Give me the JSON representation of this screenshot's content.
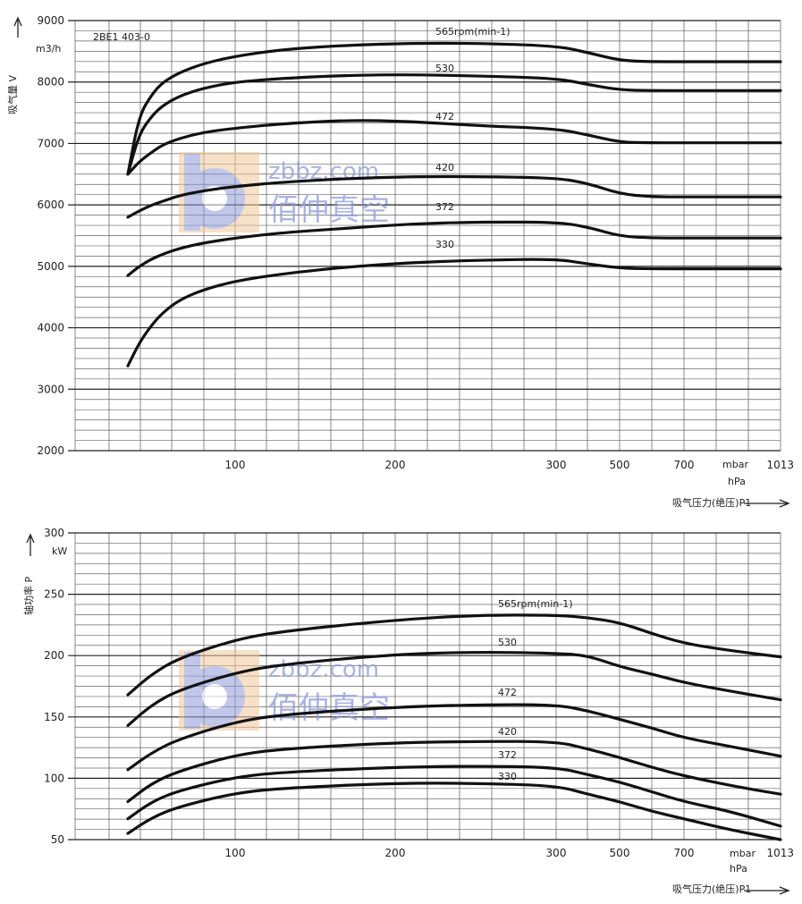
{
  "chart_data": [
    {
      "type": "line",
      "title": "2BE1 403-0",
      "ylabel": "吸气量 V",
      "yunit": "m3/h",
      "xlabel": "吸气压力(绝压)P1",
      "xunit_1": "mbar",
      "xunit_2": "hPa",
      "ylim": [
        2000,
        9000
      ],
      "y_ticks": [
        "2000",
        "3000",
        "4000",
        "5000",
        "6000",
        "7000",
        "8000",
        "9000"
      ],
      "x_ticks": [
        "100",
        "200",
        "300",
        "500",
        "700",
        "1013"
      ],
      "series": [
        {
          "name": "565rpm(min-1)",
          "x": [
            33,
            40,
            48,
            55,
            65,
            80,
            100,
            130,
            170,
            210,
            250,
            300,
            400,
            500,
            600,
            700,
            850,
            1013
          ],
          "y": [
            6500,
            7450,
            7800,
            8000,
            8150,
            8300,
            8420,
            8530,
            8600,
            8630,
            8630,
            8590,
            8480,
            8350,
            8330,
            8330,
            8330,
            8330
          ]
        },
        {
          "name": "530",
          "x": [
            33,
            40,
            48,
            55,
            65,
            80,
            100,
            130,
            170,
            210,
            250,
            300,
            400,
            500,
            600,
            700,
            850,
            1013
          ],
          "y": [
            6500,
            7150,
            7450,
            7620,
            7770,
            7900,
            8000,
            8060,
            8110,
            8120,
            8100,
            8060,
            7960,
            7870,
            7860,
            7860,
            7860,
            7860
          ]
        },
        {
          "name": "472",
          "x": [
            33,
            40,
            48,
            55,
            65,
            80,
            100,
            130,
            170,
            210,
            250,
            300,
            400,
            500,
            600,
            700,
            850,
            1013
          ],
          "y": [
            6500,
            6700,
            6860,
            6980,
            7080,
            7180,
            7250,
            7320,
            7380,
            7360,
            7290,
            7240,
            7140,
            7020,
            7010,
            7010,
            7010,
            7010
          ]
        },
        {
          "name": "420",
          "x": [
            33,
            40,
            48,
            55,
            65,
            80,
            100,
            130,
            170,
            210,
            250,
            300,
            400,
            500,
            600,
            700,
            850,
            1013
          ],
          "y": [
            5800,
            5900,
            6000,
            6060,
            6150,
            6230,
            6300,
            6370,
            6430,
            6460,
            6460,
            6440,
            6350,
            6180,
            6130,
            6130,
            6130,
            6130
          ]
        },
        {
          "name": "372",
          "x": [
            33,
            40,
            48,
            55,
            65,
            80,
            100,
            130,
            170,
            210,
            250,
            300,
            400,
            500,
            600,
            700,
            850,
            1013
          ],
          "y": [
            4850,
            5000,
            5120,
            5200,
            5290,
            5380,
            5460,
            5550,
            5620,
            5690,
            5720,
            5720,
            5640,
            5490,
            5460,
            5460,
            5460,
            5460
          ]
        },
        {
          "name": "330",
          "x": [
            33,
            40,
            48,
            55,
            65,
            80,
            100,
            130,
            170,
            210,
            250,
            300,
            400,
            500,
            600,
            700,
            850,
            1013
          ],
          "y": [
            3380,
            3750,
            4050,
            4250,
            4450,
            4620,
            4760,
            4880,
            4990,
            5060,
            5100,
            5120,
            5040,
            4970,
            4960,
            4960,
            4960,
            4960
          ]
        }
      ]
    },
    {
      "type": "line",
      "ylabel": "轴功率 P",
      "yunit": "kW",
      "xlabel": "吸气压力(绝压)P1",
      "xunit_1": "mbar",
      "xunit_2": "hPa",
      "ylim": [
        50,
        300
      ],
      "y_ticks": [
        "50",
        "100",
        "150",
        "200",
        "250",
        "300"
      ],
      "x_ticks": [
        "100",
        "200",
        "300",
        "500",
        "700",
        "1013"
      ],
      "series": [
        {
          "name": "565rpm(min-1)",
          "x": [
            33,
            48,
            65,
            100,
            130,
            200,
            250,
            300,
            400,
            500,
            600,
            700,
            850,
            1013
          ],
          "y": [
            168,
            185,
            198,
            213,
            220,
            229,
            233,
            233,
            231,
            227,
            218,
            210,
            204,
            199
          ]
        },
        {
          "name": "530",
          "x": [
            33,
            48,
            65,
            100,
            130,
            200,
            250,
            300,
            400,
            500,
            600,
            700,
            850,
            1013
          ],
          "y": [
            143,
            160,
            172,
            186,
            193,
            201,
            203,
            202,
            200,
            191,
            185,
            178,
            171,
            164
          ]
        },
        {
          "name": "472",
          "x": [
            33,
            48,
            65,
            100,
            130,
            200,
            250,
            300,
            400,
            500,
            600,
            700,
            850,
            1013
          ],
          "y": [
            107,
            121,
            132,
            146,
            152,
            158,
            160,
            160,
            155,
            148,
            141,
            133,
            126,
            118
          ]
        },
        {
          "name": "420",
          "x": [
            33,
            48,
            65,
            100,
            130,
            200,
            250,
            300,
            400,
            500,
            600,
            700,
            850,
            1013
          ],
          "y": [
            81,
            96,
            106,
            119,
            124,
            129,
            130,
            130,
            124,
            117,
            109,
            102,
            94,
            87
          ]
        },
        {
          "name": "372",
          "x": [
            33,
            48,
            65,
            100,
            130,
            200,
            250,
            300,
            400,
            500,
            600,
            700,
            850,
            1013
          ],
          "y": [
            67,
            81,
            90,
            101,
            105,
            109,
            110,
            109,
            103,
            97,
            89,
            81,
            73,
            61
          ]
        },
        {
          "name": "330",
          "x": [
            33,
            48,
            65,
            100,
            130,
            200,
            250,
            300,
            400,
            500,
            600,
            700,
            850,
            1013
          ],
          "y": [
            55,
            68,
            77,
            88,
            92,
            96,
            96,
            94,
            87,
            81,
            73,
            67,
            58,
            50
          ]
        }
      ]
    }
  ],
  "watermark": {
    "url_text": "zbbz.com",
    "cn_text": "佰仲真空",
    "color": "#8f9bd8",
    "accent": "#f2b878"
  }
}
